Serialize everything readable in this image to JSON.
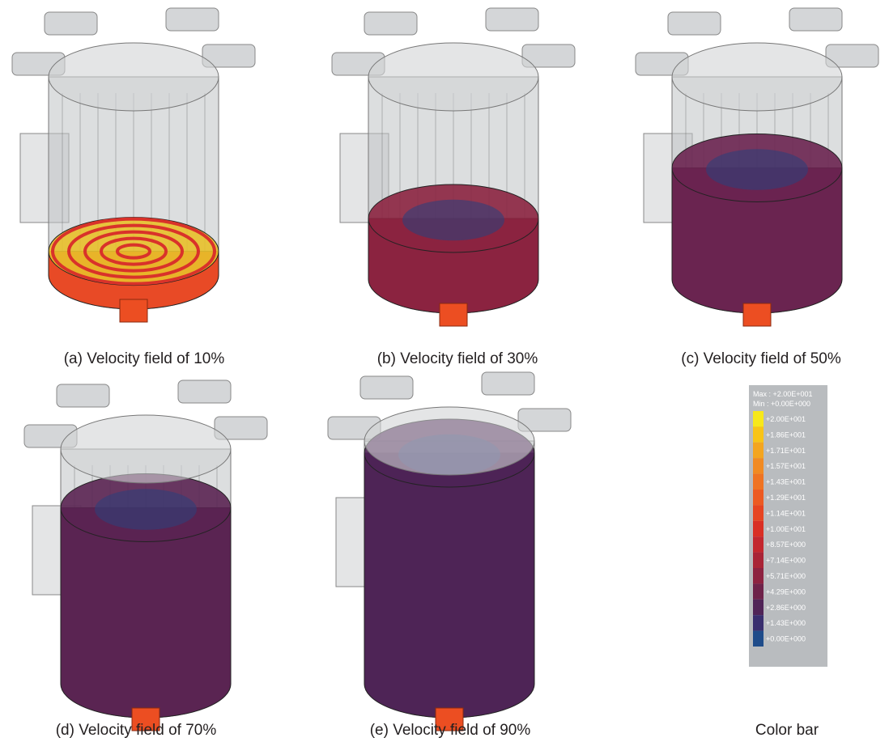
{
  "panels": [
    {
      "caption": "(a) Velocity field of 10%"
    },
    {
      "caption": "(b) Velocity field of 30%"
    },
    {
      "caption": "(c) Velocity field of 50%"
    },
    {
      "caption": "(d) Velocity field of 70%"
    },
    {
      "caption": "(e) Velocity field of 90%"
    }
  ],
  "color_bar": {
    "caption": "Color bar",
    "max": "Max : +2.00E+001",
    "min": "Min : +0.00E+000",
    "labels": [
      "+2.00E+001",
      "+1.86E+001",
      "+1.71E+001",
      "+1.57E+001",
      "+1.43E+001",
      "+1.29E+001",
      "+1.14E+001",
      "+1.00E+001",
      "+8.57E+000",
      "+7.14E+000",
      "+5.71E+000",
      "+4.29E+000",
      "+2.86E+000",
      "+1.43E+000",
      "+0.00E+000"
    ],
    "colors": [
      "#f7e81a",
      "#f8c417",
      "#f4a51f",
      "#f18a22",
      "#ef7322",
      "#ec5a22",
      "#e64421",
      "#d92f24",
      "#c3272e",
      "#a92436",
      "#8d2240",
      "#6e2249",
      "#502457",
      "#392e6e",
      "#1f4c8a"
    ]
  }
}
